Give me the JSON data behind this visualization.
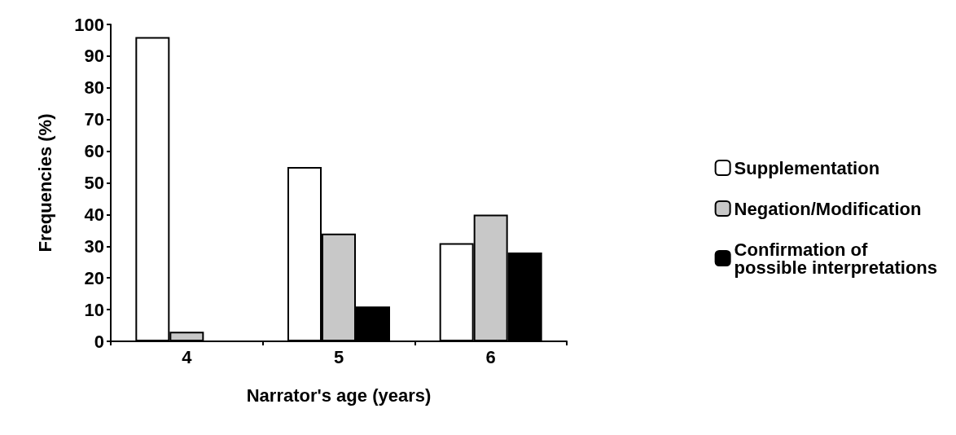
{
  "chart_data": {
    "type": "bar",
    "xlabel": "Narrator's age (years)",
    "ylabel": "Frequencies (%)",
    "categories": [
      "4",
      "5",
      "6"
    ],
    "series": [
      {
        "name": "Supplementation",
        "color": "#ffffff",
        "values": [
          96,
          55,
          31
        ]
      },
      {
        "name": "Negation/Modification",
        "color": "#c8c8c8",
        "values": [
          3,
          34,
          40
        ]
      },
      {
        "name": "Confirmation of\npossible interpretations",
        "color": "#000000",
        "values": [
          0,
          11,
          28
        ]
      }
    ],
    "ylim": [
      0,
      100
    ],
    "yticks": [
      0,
      10,
      20,
      30,
      40,
      50,
      60,
      70,
      80,
      90,
      100
    ],
    "grid": false,
    "legend": "right"
  }
}
